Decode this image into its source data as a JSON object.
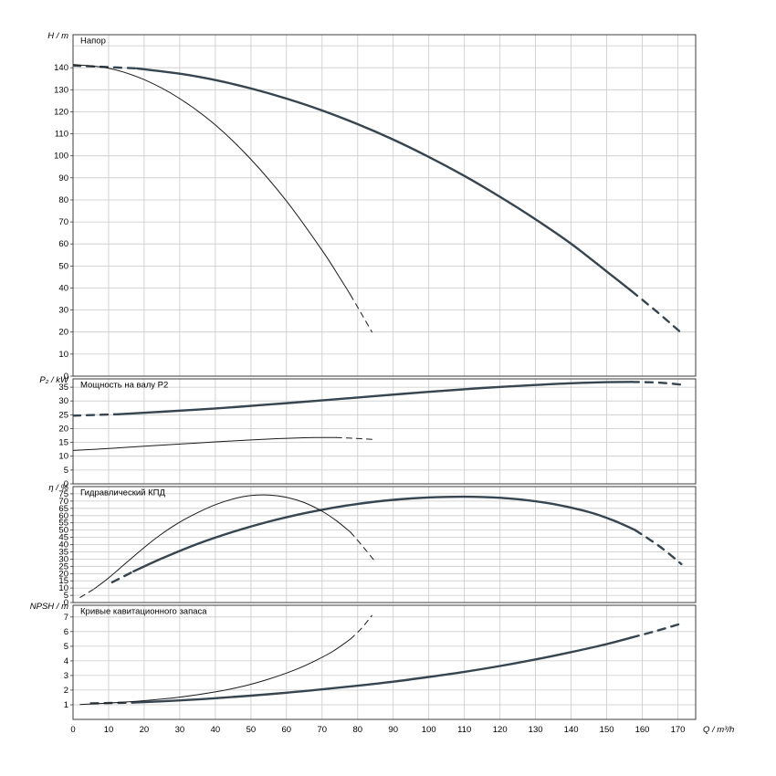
{
  "page": {
    "background": "#ffffff"
  },
  "chart_data": {
    "type": "line",
    "xlabel": "Q / m³/h",
    "xlim": [
      0,
      175
    ],
    "xticks": [
      0,
      10,
      20,
      30,
      40,
      50,
      60,
      70,
      80,
      90,
      100,
      110,
      120,
      130,
      140,
      150,
      160,
      170
    ],
    "grid": true,
    "styles": {
      "thick": {
        "color": "#36454f",
        "width": 2.4,
        "dash": "8 7"
      },
      "thin": {
        "color": "#1a1a1a",
        "width": 1.0,
        "dash": "6 5"
      },
      "grid_color": "#c9c9c9",
      "border_color": "#3c3c3c",
      "text_color": "#000000"
    },
    "panels": [
      {
        "key": "head",
        "title": "Напор",
        "ylabel": "H / m",
        "ylim": [
          0,
          155
        ],
        "yticks": [
          0,
          10,
          20,
          30,
          40,
          50,
          60,
          70,
          80,
          90,
          100,
          110,
          120,
          130,
          140
        ],
        "series": [
          {
            "name": "thick-curve",
            "style": "thick",
            "dash_start": [
              [
                0,
                141
              ],
              [
                18,
                139.7
              ]
            ],
            "solid": [
              [
                18,
                139.7
              ],
              [
                30,
                137.3
              ],
              [
                40,
                134.4
              ],
              [
                50,
                130.6
              ],
              [
                60,
                126
              ],
              [
                70,
                120.6
              ],
              [
                80,
                114.4
              ],
              [
                90,
                107.4
              ],
              [
                100,
                99.5
              ],
              [
                110,
                90.9
              ],
              [
                120,
                81.4
              ],
              [
                130,
                71.2
              ],
              [
                140,
                60.1
              ],
              [
                150,
                47.5
              ],
              [
                157,
                38.6
              ]
            ],
            "dash_end": [
              [
                157,
                38.6
              ],
              [
                164,
                29.4
              ],
              [
                171,
                19.6
              ]
            ]
          },
          {
            "name": "thin-curve",
            "style": "thin",
            "dash_start": [],
            "solid": [
              [
                0,
                141.5
              ],
              [
                10,
                139.8
              ],
              [
                20,
                134.6
              ],
              [
                30,
                126
              ],
              [
                40,
                114
              ],
              [
                50,
                98.4
              ],
              [
                60,
                79.5
              ],
              [
                70,
                57.1
              ],
              [
                75,
                44.6
              ],
              [
                78,
                36.8
              ]
            ],
            "dash_end": [
              [
                78,
                36.8
              ],
              [
                81,
                28.5
              ],
              [
                84,
                20
              ]
            ]
          }
        ]
      },
      {
        "key": "power",
        "title": "Мощность на валу P2",
        "ylabel": "P₂ / kW",
        "ylim": [
          0,
          38
        ],
        "yticks": [
          0,
          5,
          10,
          15,
          20,
          25,
          30,
          35
        ],
        "series": [
          {
            "name": "thick-curve",
            "style": "thick",
            "dash_start": [
              [
                0,
                24.7
              ],
              [
                13,
                25.2
              ]
            ],
            "solid": [
              [
                13,
                25.2
              ],
              [
                25,
                26.1
              ],
              [
                40,
                27.3
              ],
              [
                55,
                28.7
              ],
              [
                70,
                30.2
              ],
              [
                85,
                31.8
              ],
              [
                100,
                33.3
              ],
              [
                115,
                34.7
              ],
              [
                130,
                35.8
              ],
              [
                140,
                36.4
              ],
              [
                150,
                36.8
              ],
              [
                157,
                36.9
              ]
            ],
            "dash_end": [
              [
                157,
                36.9
              ],
              [
                165,
                36.6
              ],
              [
                172,
                35.8
              ]
            ]
          },
          {
            "name": "thin-curve",
            "style": "thin",
            "dash_start": [],
            "solid": [
              [
                0,
                12.1
              ],
              [
                10,
                12.8
              ],
              [
                20,
                13.6
              ],
              [
                30,
                14.4
              ],
              [
                40,
                15.2
              ],
              [
                50,
                15.9
              ],
              [
                58,
                16.4
              ],
              [
                65,
                16.7
              ],
              [
                70,
                16.8
              ],
              [
                74,
                16.8
              ]
            ],
            "dash_end": [
              [
                74,
                16.8
              ],
              [
                79,
                16.5
              ],
              [
                84,
                16.1
              ]
            ]
          }
        ]
      },
      {
        "key": "efficiency",
        "title": "Гидравлический КПД",
        "ylabel": "η / %",
        "ylim": [
          0,
          80
        ],
        "yticks": [
          0,
          5,
          10,
          15,
          20,
          25,
          30,
          35,
          40,
          45,
          50,
          55,
          60,
          65,
          70,
          75
        ],
        "series": [
          {
            "name": "thick-curve",
            "style": "thick",
            "dash_start": [
              [
                11,
                14
              ],
              [
                17,
                21.5
              ]
            ],
            "solid": [
              [
                17,
                21.5
              ],
              [
                25,
                30.5
              ],
              [
                35,
                40.5
              ],
              [
                45,
                48.8
              ],
              [
                55,
                55.8
              ],
              [
                65,
                61.6
              ],
              [
                75,
                66.2
              ],
              [
                85,
                69.6
              ],
              [
                95,
                71.8
              ],
              [
                105,
                72.9
              ],
              [
                115,
                72.8
              ],
              [
                125,
                71.3
              ],
              [
                135,
                68
              ],
              [
                145,
                62.4
              ],
              [
                152,
                56.5
              ],
              [
                158,
                50
              ]
            ],
            "dash_end": [
              [
                158,
                50
              ],
              [
                165,
                38.5
              ],
              [
                171,
                26.5
              ]
            ]
          },
          {
            "name": "thin-curve",
            "style": "thin",
            "dash_start": [
              [
                2,
                3.5
              ],
              [
                6,
                9.5
              ]
            ],
            "solid": [
              [
                6,
                9.5
              ],
              [
                10,
                17
              ],
              [
                15,
                27.5
              ],
              [
                20,
                38
              ],
              [
                25,
                47.5
              ],
              [
                30,
                55.5
              ],
              [
                35,
                62
              ],
              [
                40,
                67.5
              ],
              [
                45,
                71.5
              ],
              [
                50,
                73.8
              ],
              [
                55,
                74.2
              ],
              [
                60,
                72.6
              ],
              [
                65,
                69
              ],
              [
                70,
                63
              ],
              [
                74,
                56.5
              ],
              [
                78,
                48.5
              ]
            ],
            "dash_end": [
              [
                78,
                48.5
              ],
              [
                81,
                40
              ],
              [
                85,
                28
              ]
            ]
          }
        ]
      },
      {
        "key": "npsh",
        "title": "Кривые кавитационного запаса",
        "ylabel": "NPSH / m",
        "ylim": [
          0,
          7.8
        ],
        "yticks": [
          1,
          2,
          3,
          4,
          5,
          6,
          7
        ],
        "series": [
          {
            "name": "thick-curve",
            "style": "thick",
            "dash_start": [
              [
                5,
                1.1
              ],
              [
                17,
                1.15
              ]
            ],
            "solid": [
              [
                17,
                1.15
              ],
              [
                30,
                1.3
              ],
              [
                40,
                1.45
              ],
              [
                50,
                1.62
              ],
              [
                60,
                1.82
              ],
              [
                70,
                2.05
              ],
              [
                80,
                2.3
              ],
              [
                90,
                2.58
              ],
              [
                100,
                2.9
              ],
              [
                110,
                3.25
              ],
              [
                120,
                3.65
              ],
              [
                130,
                4.1
              ],
              [
                140,
                4.6
              ],
              [
                150,
                5.15
              ],
              [
                157,
                5.6
              ]
            ],
            "dash_end": [
              [
                157,
                5.6
              ],
              [
                164,
                6.05
              ],
              [
                171,
                6.55
              ]
            ]
          },
          {
            "name": "thin-curve",
            "style": "thin",
            "dash_start": [],
            "solid": [
              [
                2,
                1.02
              ],
              [
                10,
                1.12
              ],
              [
                20,
                1.28
              ],
              [
                30,
                1.52
              ],
              [
                40,
                1.88
              ],
              [
                48,
                2.28
              ],
              [
                55,
                2.75
              ],
              [
                62,
                3.35
              ],
              [
                68,
                4.0
              ],
              [
                73,
                4.65
              ],
              [
                78,
                5.5
              ]
            ],
            "dash_end": [
              [
                78,
                5.5
              ],
              [
                81,
                6.2
              ],
              [
                84,
                7.1
              ]
            ]
          }
        ]
      }
    ]
  }
}
